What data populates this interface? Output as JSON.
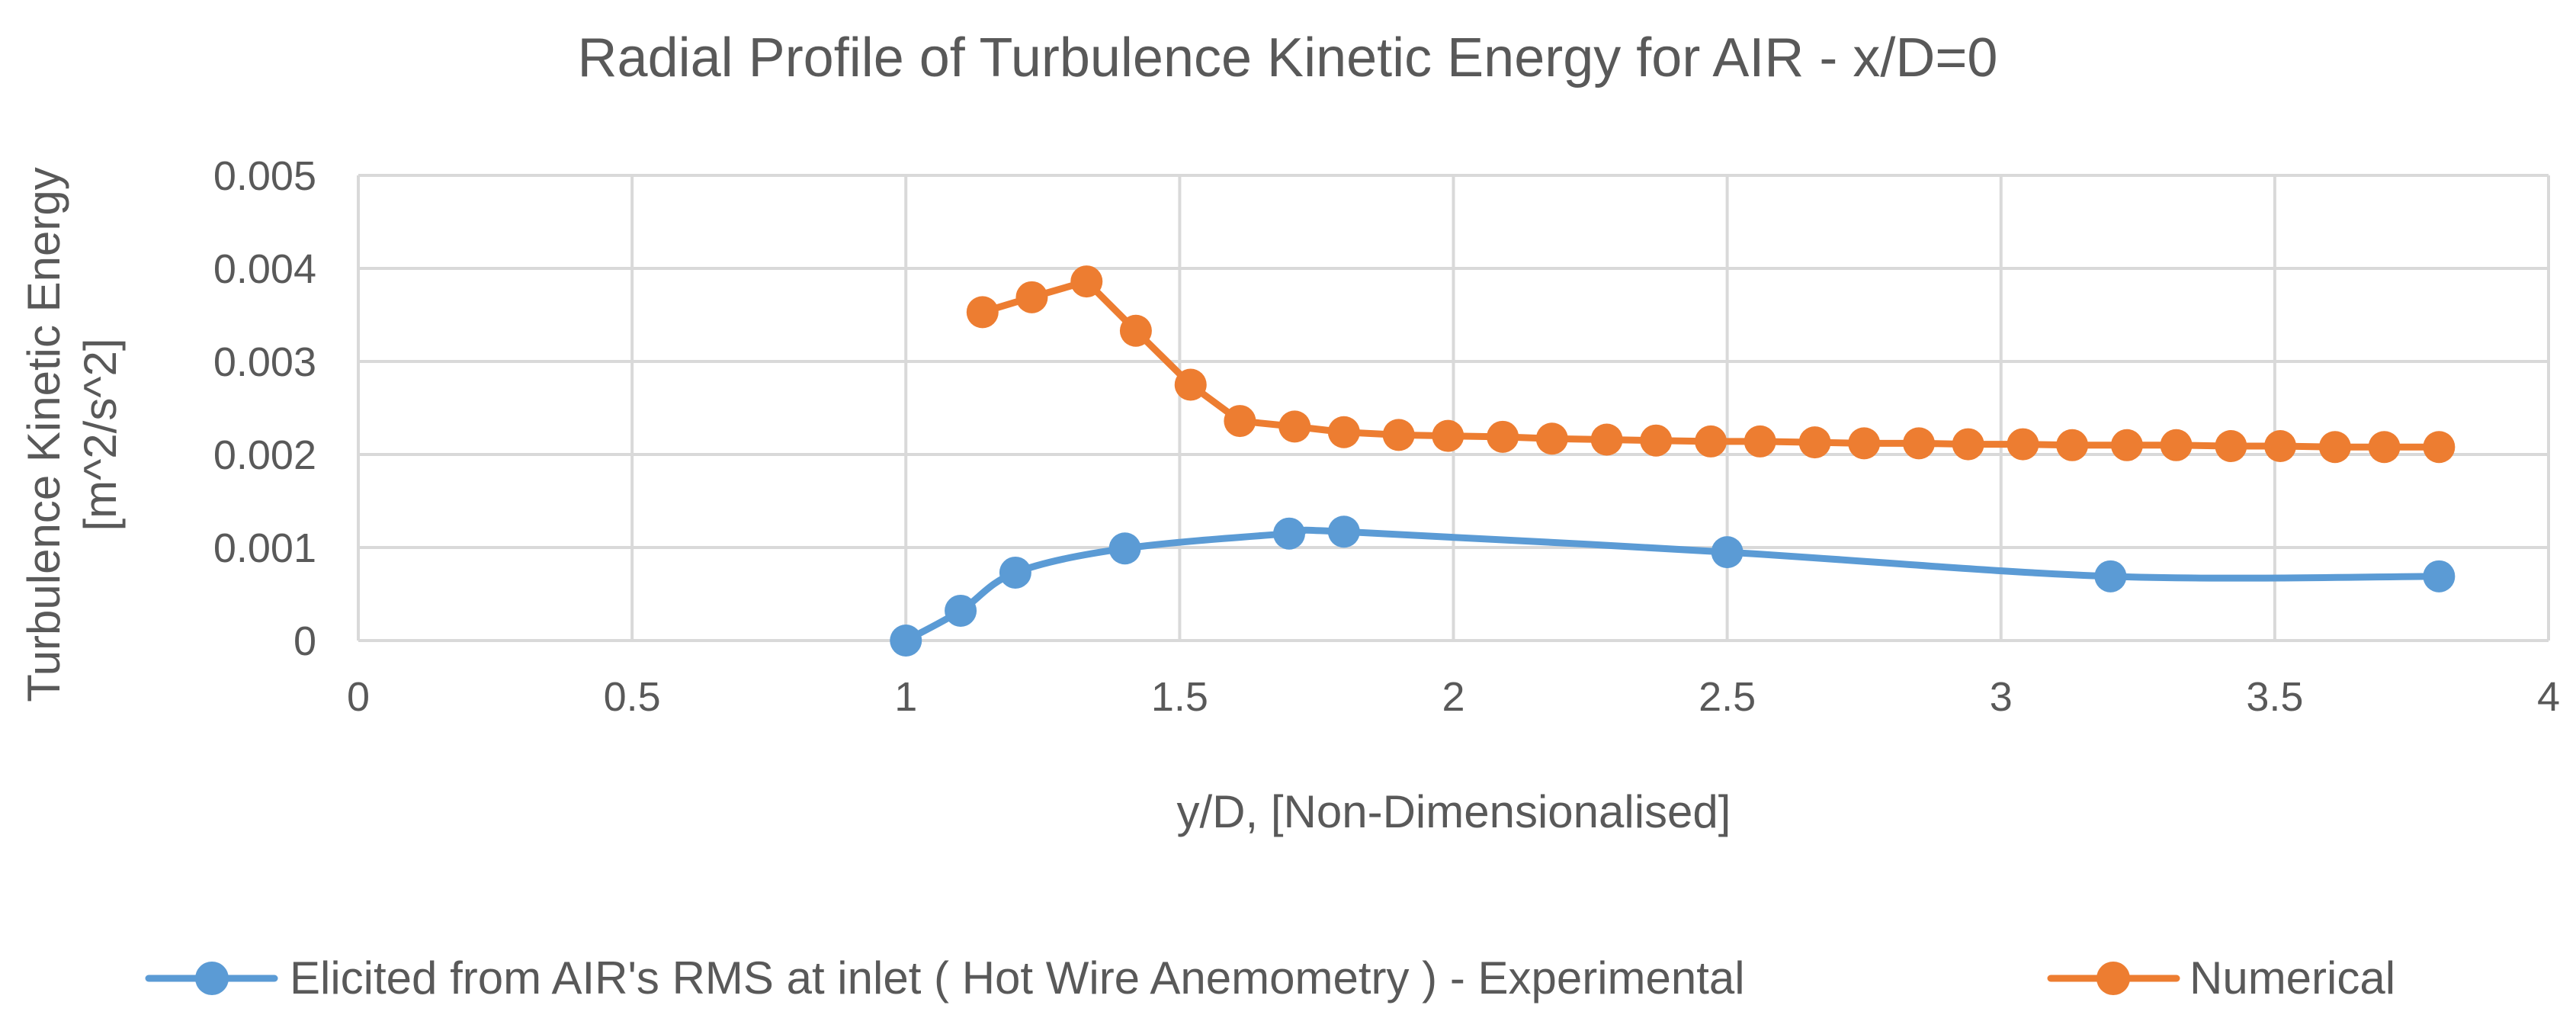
{
  "chart_data": {
    "type": "line",
    "title": "Radial Profile of Turbulence Kinetic Energy for AIR - x/D=0",
    "xlabel": "y/D, [Non-Dimensionalised]",
    "ylabel_line1": "Turbulence Kinetic Energy",
    "ylabel_line2": "[m^2/s^2]",
    "xlim": [
      0,
      4
    ],
    "ylim": [
      0,
      0.005
    ],
    "x_ticks": [
      "0",
      "0.5",
      "1",
      "1.5",
      "2",
      "2.5",
      "3",
      "3.5",
      "4"
    ],
    "y_ticks": [
      "0",
      "0.001",
      "0.002",
      "0.003",
      "0.004",
      "0.005"
    ],
    "grid": true,
    "legend_position": "bottom",
    "series": [
      {
        "name": "Elicited from AIR's RMS at inlet ( Hot Wire Anemometry ) - Experimental",
        "color": "#5b9bd5",
        "smooth": true,
        "x": [
          1.0,
          1.1,
          1.2,
          1.4,
          1.7,
          1.8,
          2.5,
          3.2,
          3.8
        ],
        "y": [
          0.0,
          0.00032,
          0.00073,
          0.00099,
          0.00115,
          0.00117,
          0.00095,
          0.00069,
          0.00069
        ]
      },
      {
        "name": "Numerical",
        "color": "#ed7d31",
        "smooth": false,
        "x": [
          1.14,
          1.23,
          1.33,
          1.42,
          1.52,
          1.61,
          1.71,
          1.8,
          1.9,
          1.99,
          2.09,
          2.18,
          2.28,
          2.37,
          2.47,
          2.56,
          2.66,
          2.75,
          2.85,
          2.94,
          3.04,
          3.13,
          3.23,
          3.32,
          3.42,
          3.51,
          3.61,
          3.7,
          3.8
        ],
        "y": [
          0.00353,
          0.00369,
          0.00386,
          0.00333,
          0.00275,
          0.00236,
          0.0023,
          0.00224,
          0.00221,
          0.0022,
          0.00219,
          0.00217,
          0.00216,
          0.00215,
          0.00214,
          0.00214,
          0.00213,
          0.00212,
          0.00212,
          0.00211,
          0.00211,
          0.0021,
          0.0021,
          0.0021,
          0.00209,
          0.00209,
          0.00208,
          0.00208,
          0.00208
        ]
      }
    ]
  }
}
